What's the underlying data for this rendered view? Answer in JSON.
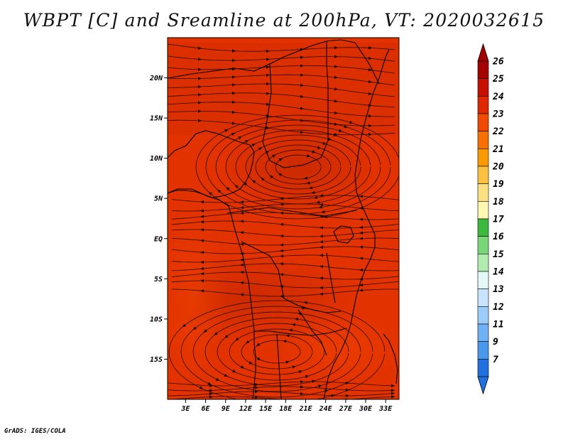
{
  "title": "WBPT [C] and Sreamline at 200hPa, VT: 2020032615",
  "credit": "GrADS: IGES/COLA",
  "map": {
    "variable": "WBPT",
    "field_colors": {
      "base": "#e23200",
      "dark": "#c42700",
      "mid": "#d62d00",
      "light": "#ee4200"
    },
    "lat_ticks": [
      {
        "label": "20N",
        "value": 20
      },
      {
        "label": "15N",
        "value": 15
      },
      {
        "label": "10N",
        "value": 10
      },
      {
        "label": "5N",
        "value": 5
      },
      {
        "label": "EQ",
        "value": 0
      },
      {
        "label": "5S",
        "value": -5
      },
      {
        "label": "10S",
        "value": -10
      },
      {
        "label": "15S",
        "value": -15
      }
    ],
    "lon_ticks": [
      {
        "label": "3E",
        "value": 3
      },
      {
        "label": "6E",
        "value": 6
      },
      {
        "label": "9E",
        "value": 9
      },
      {
        "label": "12E",
        "value": 12
      },
      {
        "label": "15E",
        "value": 15
      },
      {
        "label": "18E",
        "value": 18
      },
      {
        "label": "21E",
        "value": 21
      },
      {
        "label": "24E",
        "value": 24
      },
      {
        "label": "27E",
        "value": 27
      },
      {
        "label": "30E",
        "value": 30
      },
      {
        "label": "33E",
        "value": 33
      }
    ],
    "lon_range": [
      0.3,
      35
    ],
    "lat_range": [
      -20,
      25
    ]
  },
  "colorbar": {
    "labels": [
      "26",
      "25",
      "24",
      "23",
      "22",
      "21",
      "20",
      "19",
      "18",
      "17",
      "16",
      "15",
      "14",
      "13",
      "12",
      "11",
      "9",
      "7"
    ],
    "colors": [
      "#a50000",
      "#c81000",
      "#e02800",
      "#f04a00",
      "#f87000",
      "#fa9a00",
      "#fcc040",
      "#fde080",
      "#fef8b0",
      "#3cb83c",
      "#78d878",
      "#b0ecb0",
      "#e4f8f8",
      "#c8e4fc",
      "#9cccfa",
      "#70b0f4",
      "#4898ee",
      "#2070e0"
    ],
    "top_arrow_color": "#a50000",
    "bottom_arrow_color": "#2070e0"
  }
}
